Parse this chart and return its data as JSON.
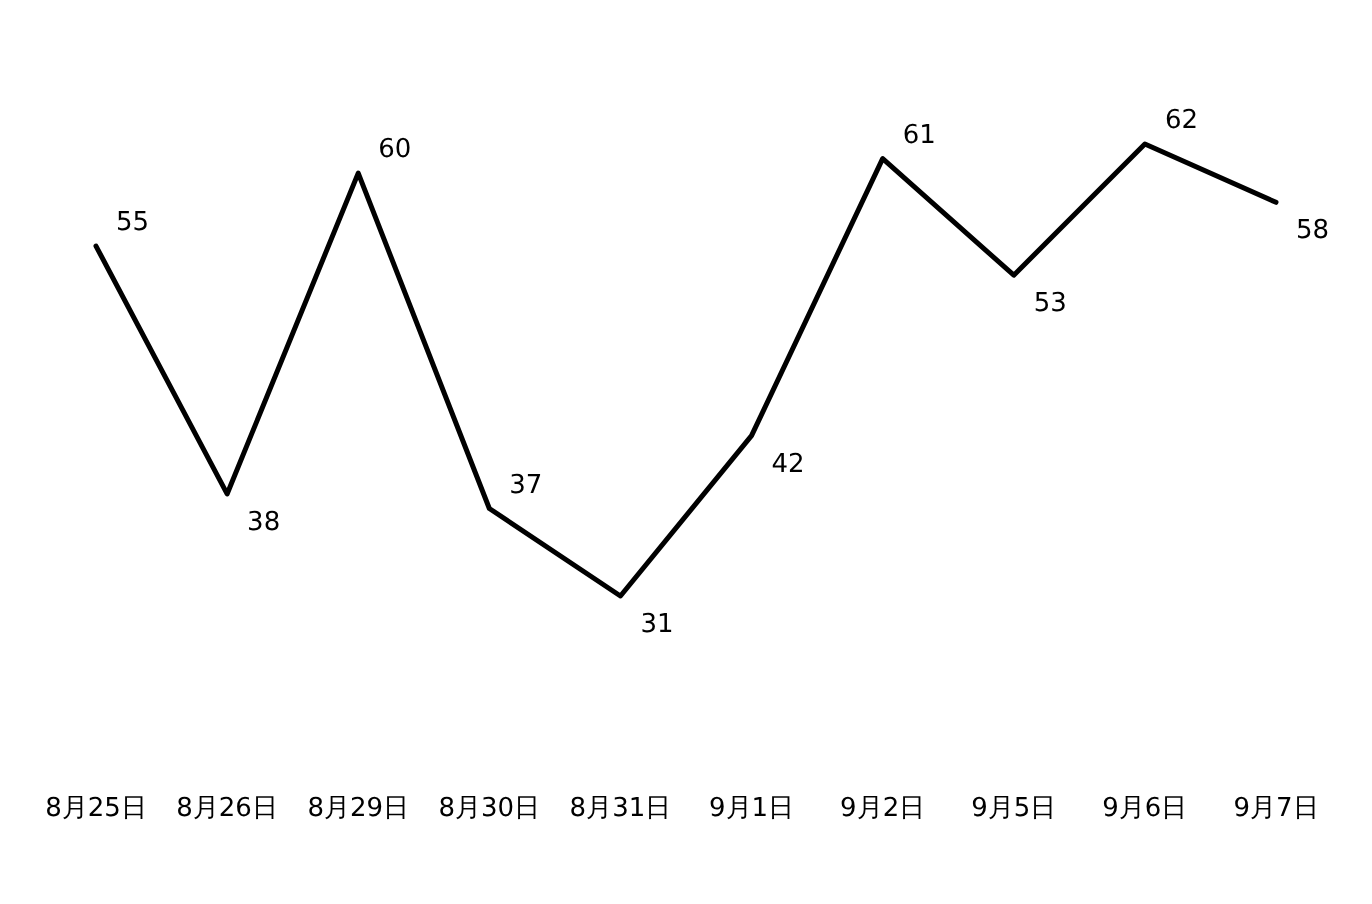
{
  "chart_data": {
    "type": "line",
    "categories": [
      "8月25日",
      "8月26日",
      "8月29日",
      "8月30日",
      "8月31日",
      "9月1日",
      "9月2日",
      "9月5日",
      "9月6日",
      "9月7日"
    ],
    "series": [
      {
        "color": "#000000",
        "values": [
          55,
          38,
          60,
          37,
          31,
          42,
          61,
          53,
          62,
          58
        ]
      }
    ],
    "data_labels": true,
    "marker": "none",
    "line_style": "solid"
  }
}
